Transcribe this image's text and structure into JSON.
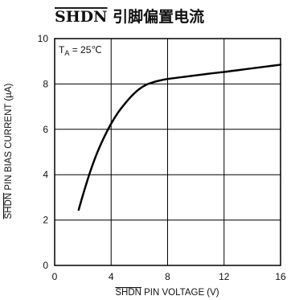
{
  "chart_data": {
    "type": "line",
    "title": "SHDN 引脚偏置电流",
    "title_overlined_part": "SHDN",
    "title_rest": " 引脚偏置电流",
    "xlabel_overlined_part": "SHDN",
    "xlabel_rest": " PIN VOLTAGE (V)",
    "ylabel_overlined_part": "SHDN",
    "ylabel_rest": " PIN BIAS CURRENT (µA)",
    "annotation": {
      "prefix": "T",
      "subscript": "A",
      "rest": " = 25℃"
    },
    "xlim": [
      0,
      16
    ],
    "ylim": [
      0,
      10
    ],
    "x_ticks": [
      0,
      4,
      8,
      12,
      16
    ],
    "y_ticks": [
      0,
      2,
      4,
      6,
      8,
      10
    ],
    "grid": true,
    "series": [
      {
        "x": [
          1.7,
          2.0,
          2.5,
          3.0,
          3.5,
          4.0,
          4.5,
          5.0,
          5.5,
          6.0,
          6.5,
          7.0,
          7.5,
          8.0,
          9.0,
          10.0,
          11.0,
          12.0,
          13.0,
          14.0,
          15.0,
          16.0
        ],
        "y": [
          2.45,
          3.1,
          4.1,
          4.95,
          5.65,
          6.25,
          6.75,
          7.15,
          7.5,
          7.78,
          7.97,
          8.08,
          8.16,
          8.22,
          8.3,
          8.38,
          8.46,
          8.53,
          8.61,
          8.69,
          8.77,
          8.85
        ],
        "color": "#000000"
      }
    ]
  }
}
